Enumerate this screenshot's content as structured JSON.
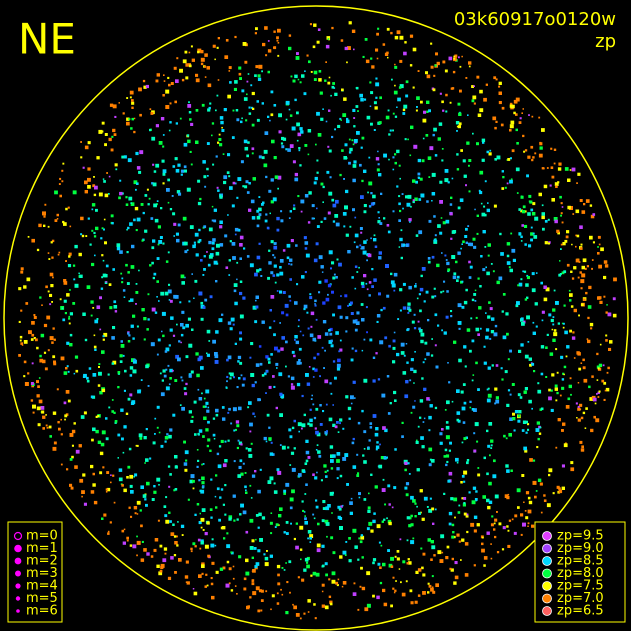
{
  "title": "NE",
  "image_id": "03k60917o0120w",
  "color_key": "zp",
  "magnitude_legend": [
    {
      "label": "m=0",
      "radius": 3.5,
      "open": true
    },
    {
      "label": "m=1",
      "radius": 3.2
    },
    {
      "label": "m=2",
      "radius": 2.8
    },
    {
      "label": "m=3",
      "radius": 2.4
    },
    {
      "label": "m=4",
      "radius": 2.0
    },
    {
      "label": "m=5",
      "radius": 1.6
    },
    {
      "label": "m=6",
      "radius": 1.2
    }
  ],
  "zp_legend": [
    {
      "label": "zp=9.5",
      "color": "#e040ff"
    },
    {
      "label": "zp=9.0",
      "color": "#a040ff"
    },
    {
      "label": "zp=8.5",
      "color": "#00d8ff"
    },
    {
      "label": "zp=8.0",
      "color": "#00ff40"
    },
    {
      "label": "zp=7.5",
      "color": "#ffff00"
    },
    {
      "label": "zp=7.0",
      "color": "#ff8000"
    },
    {
      "label": "zp=6.5",
      "color": "#ff6060"
    }
  ]
}
